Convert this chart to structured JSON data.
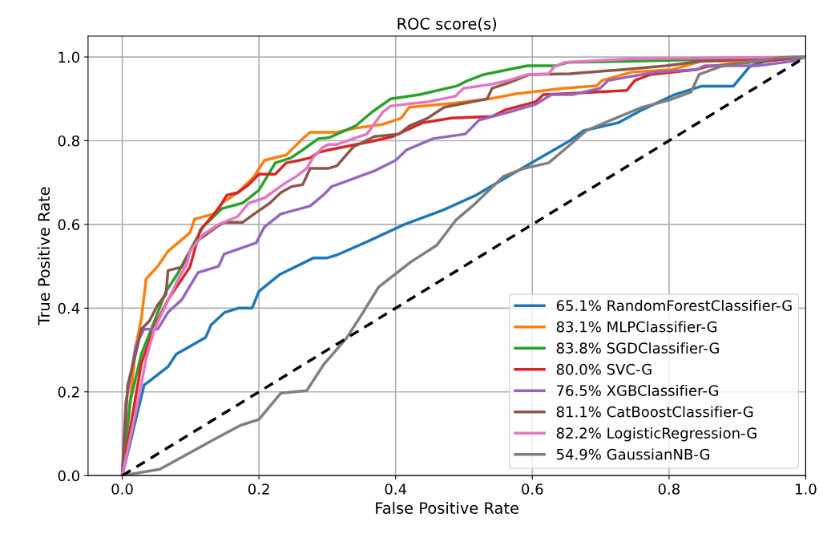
{
  "chart_data": {
    "type": "line",
    "title": "ROC score(s)",
    "xlabel": "False Positive Rate",
    "ylabel": "True Positive Rate",
    "xlim": [
      -0.05,
      1.0
    ],
    "ylim": [
      0.0,
      1.05
    ],
    "xticks": [
      {
        "value": 0,
        "label": "0.0"
      },
      0.2,
      0.4,
      0.6,
      0.8,
      {
        "value": 1,
        "label": "1.0"
      }
    ],
    "yticks": [
      {
        "value": 0,
        "label": "0.0"
      },
      0.2,
      0.4,
      0.6,
      0.8,
      {
        "value": 1,
        "label": "1.0"
      }
    ],
    "grid": true,
    "legend": "bottom right",
    "line_style": "solid",
    "marker": "none",
    "series": [
      {
        "name": "65.1% RandomForestClassifier-G",
        "color": "#1f77b4",
        "x": [
          0,
          0.032,
          0.067,
          0.079,
          0.122,
          0.13,
          0.15,
          0.17,
          0.19,
          0.2,
          0.23,
          0.255,
          0.28,
          0.3,
          0.314,
          0.356,
          0.413,
          0.469,
          0.518,
          0.565,
          0.605,
          0.655,
          0.675,
          0.726,
          0.761,
          0.808,
          0.847,
          0.894,
          0.918,
          0.94,
          1.0
        ],
        "values": [
          0,
          0.216,
          0.26,
          0.29,
          0.33,
          0.36,
          0.39,
          0.4,
          0.4,
          0.44,
          0.48,
          0.5,
          0.52,
          0.52,
          0.527,
          0.557,
          0.6,
          0.634,
          0.67,
          0.715,
          0.753,
          0.8,
          0.824,
          0.843,
          0.874,
          0.91,
          0.93,
          0.93,
          0.977,
          0.99,
          1.0
        ]
      },
      {
        "name": "83.1% MLPClassifier-G",
        "color": "#ff7f0e",
        "x": [
          0,
          0.008,
          0.02,
          0.028,
          0.035,
          0.052,
          0.067,
          0.099,
          0.106,
          0.134,
          0.146,
          0.169,
          0.193,
          0.208,
          0.24,
          0.264,
          0.275,
          0.3,
          0.314,
          0.341,
          0.381,
          0.408,
          0.42,
          0.487,
          0.538,
          0.576,
          0.644,
          0.694,
          0.702,
          0.746,
          0.805,
          0.847,
          0.894,
          1.0
        ],
        "values": [
          0,
          0.12,
          0.31,
          0.375,
          0.47,
          0.5,
          0.536,
          0.58,
          0.613,
          0.625,
          0.651,
          0.676,
          0.715,
          0.753,
          0.766,
          0.805,
          0.82,
          0.82,
          0.82,
          0.83,
          0.839,
          0.854,
          0.88,
          0.89,
          0.9,
          0.912,
          0.925,
          0.931,
          0.944,
          0.964,
          0.97,
          0.99,
          0.99,
          1.0
        ]
      },
      {
        "name": "83.8% SGDClassifier-G",
        "color": "#2ca02c",
        "x": [
          0,
          0.012,
          0.028,
          0.044,
          0.064,
          0.082,
          0.09,
          0.118,
          0.146,
          0.176,
          0.2,
          0.224,
          0.247,
          0.264,
          0.287,
          0.302,
          0.341,
          0.365,
          0.393,
          0.435,
          0.49,
          0.506,
          0.529,
          0.565,
          0.593,
          0.635,
          0.652,
          0.75,
          1.0
        ],
        "values": [
          0,
          0.18,
          0.29,
          0.356,
          0.44,
          0.485,
          0.51,
          0.594,
          0.638,
          0.651,
          0.682,
          0.747,
          0.759,
          0.778,
          0.805,
          0.807,
          0.835,
          0.868,
          0.9,
          0.91,
          0.931,
          0.944,
          0.958,
          0.97,
          0.979,
          0.979,
          0.987,
          0.99,
          1.0
        ]
      },
      {
        "name": "80.0% SVC-G",
        "color": "#d62728",
        "x": [
          0,
          0.016,
          0.028,
          0.047,
          0.067,
          0.099,
          0.114,
          0.141,
          0.153,
          0.169,
          0.185,
          0.2,
          0.224,
          0.24,
          0.259,
          0.275,
          0.287,
          0.302,
          0.361,
          0.396,
          0.44,
          0.482,
          0.541,
          0.561,
          0.605,
          0.616,
          0.644,
          0.738,
          0.75,
          0.773,
          0.84,
          0.855,
          1.0
        ],
        "values": [
          0,
          0.153,
          0.268,
          0.356,
          0.42,
          0.498,
          0.586,
          0.638,
          0.67,
          0.676,
          0.695,
          0.72,
          0.72,
          0.747,
          0.753,
          0.759,
          0.772,
          0.778,
          0.797,
          0.81,
          0.843,
          0.854,
          0.858,
          0.874,
          0.893,
          0.91,
          0.912,
          0.92,
          0.944,
          0.958,
          0.97,
          0.977,
          1.0
        ]
      },
      {
        "name": "76.5% XGBClassifier-G",
        "color": "#9467bd",
        "x": [
          0,
          0.005,
          0.02,
          0.032,
          0.052,
          0.067,
          0.087,
          0.111,
          0.141,
          0.149,
          0.196,
          0.208,
          0.232,
          0.275,
          0.294,
          0.306,
          0.369,
          0.4,
          0.416,
          0.455,
          0.502,
          0.522,
          0.565,
          0.605,
          0.628,
          0.659,
          0.699,
          0.711,
          0.781,
          0.84,
          0.852,
          0.929,
          0.981,
          1.0
        ],
        "values": [
          0,
          0.172,
          0.312,
          0.35,
          0.35,
          0.39,
          0.42,
          0.485,
          0.5,
          0.529,
          0.556,
          0.594,
          0.625,
          0.644,
          0.67,
          0.69,
          0.728,
          0.753,
          0.778,
          0.805,
          0.816,
          0.849,
          0.868,
          0.887,
          0.91,
          0.91,
          0.925,
          0.944,
          0.964,
          0.97,
          0.979,
          0.979,
          0.99,
          1.0
        ]
      },
      {
        "name": "81.1% CatBoostClassifier-G",
        "color": "#8c564b",
        "x": [
          0,
          0.008,
          0.02,
          0.028,
          0.04,
          0.052,
          0.064,
          0.067,
          0.087,
          0.106,
          0.138,
          0.149,
          0.176,
          0.193,
          0.216,
          0.232,
          0.247,
          0.264,
          0.275,
          0.302,
          0.314,
          0.338,
          0.369,
          0.405,
          0.42,
          0.447,
          0.471,
          0.534,
          0.541,
          0.565,
          0.596,
          0.655,
          0.734,
          0.796,
          0.847,
          1.0
        ],
        "values": [
          0,
          0.216,
          0.293,
          0.35,
          0.37,
          0.408,
          0.433,
          0.49,
          0.498,
          0.556,
          0.594,
          0.605,
          0.605,
          0.625,
          0.651,
          0.676,
          0.69,
          0.695,
          0.734,
          0.734,
          0.74,
          0.785,
          0.81,
          0.816,
          0.835,
          0.854,
          0.88,
          0.9,
          0.925,
          0.938,
          0.958,
          0.96,
          0.97,
          0.979,
          0.99,
          1.0
        ]
      },
      {
        "name": "82.2% LogisticRegression-G",
        "color": "#e377c2",
        "x": [
          0,
          0.024,
          0.035,
          0.047,
          0.064,
          0.082,
          0.094,
          0.099,
          0.118,
          0.141,
          0.169,
          0.185,
          0.208,
          0.235,
          0.255,
          0.27,
          0.279,
          0.294,
          0.302,
          0.314,
          0.358,
          0.381,
          0.393,
          0.447,
          0.487,
          0.499,
          0.541,
          0.565,
          0.593,
          0.624,
          0.632,
          0.647,
          0.746,
          1.0
        ],
        "values": [
          0,
          0.184,
          0.28,
          0.35,
          0.408,
          0.47,
          0.504,
          0.536,
          0.575,
          0.6,
          0.619,
          0.651,
          0.663,
          0.695,
          0.715,
          0.734,
          0.759,
          0.785,
          0.791,
          0.791,
          0.816,
          0.868,
          0.883,
          0.893,
          0.906,
          0.925,
          0.935,
          0.944,
          0.958,
          0.96,
          0.977,
          0.987,
          0.996,
          1.0
        ]
      },
      {
        "name": "54.9% GaussianNB-G",
        "color": "#7f7f7f",
        "x": [
          0,
          0.055,
          0.094,
          0.134,
          0.173,
          0.2,
          0.232,
          0.27,
          0.295,
          0.328,
          0.352,
          0.375,
          0.422,
          0.46,
          0.488,
          0.516,
          0.558,
          0.588,
          0.624,
          0.655,
          0.679,
          0.722,
          0.761,
          0.8,
          0.832,
          0.844,
          0.875,
          0.958,
          1.0
        ],
        "values": [
          0,
          0.015,
          0.05,
          0.086,
          0.12,
          0.134,
          0.197,
          0.203,
          0.266,
          0.328,
          0.389,
          0.45,
          0.51,
          0.55,
          0.61,
          0.649,
          0.715,
          0.734,
          0.747,
          0.79,
          0.824,
          0.854,
          0.88,
          0.897,
          0.916,
          0.958,
          0.977,
          0.998,
          1.0
        ]
      },
      {
        "color": "#000000",
        "line_style": "dashed",
        "x": [
          0,
          1
        ],
        "values": [
          0,
          1
        ]
      }
    ]
  }
}
